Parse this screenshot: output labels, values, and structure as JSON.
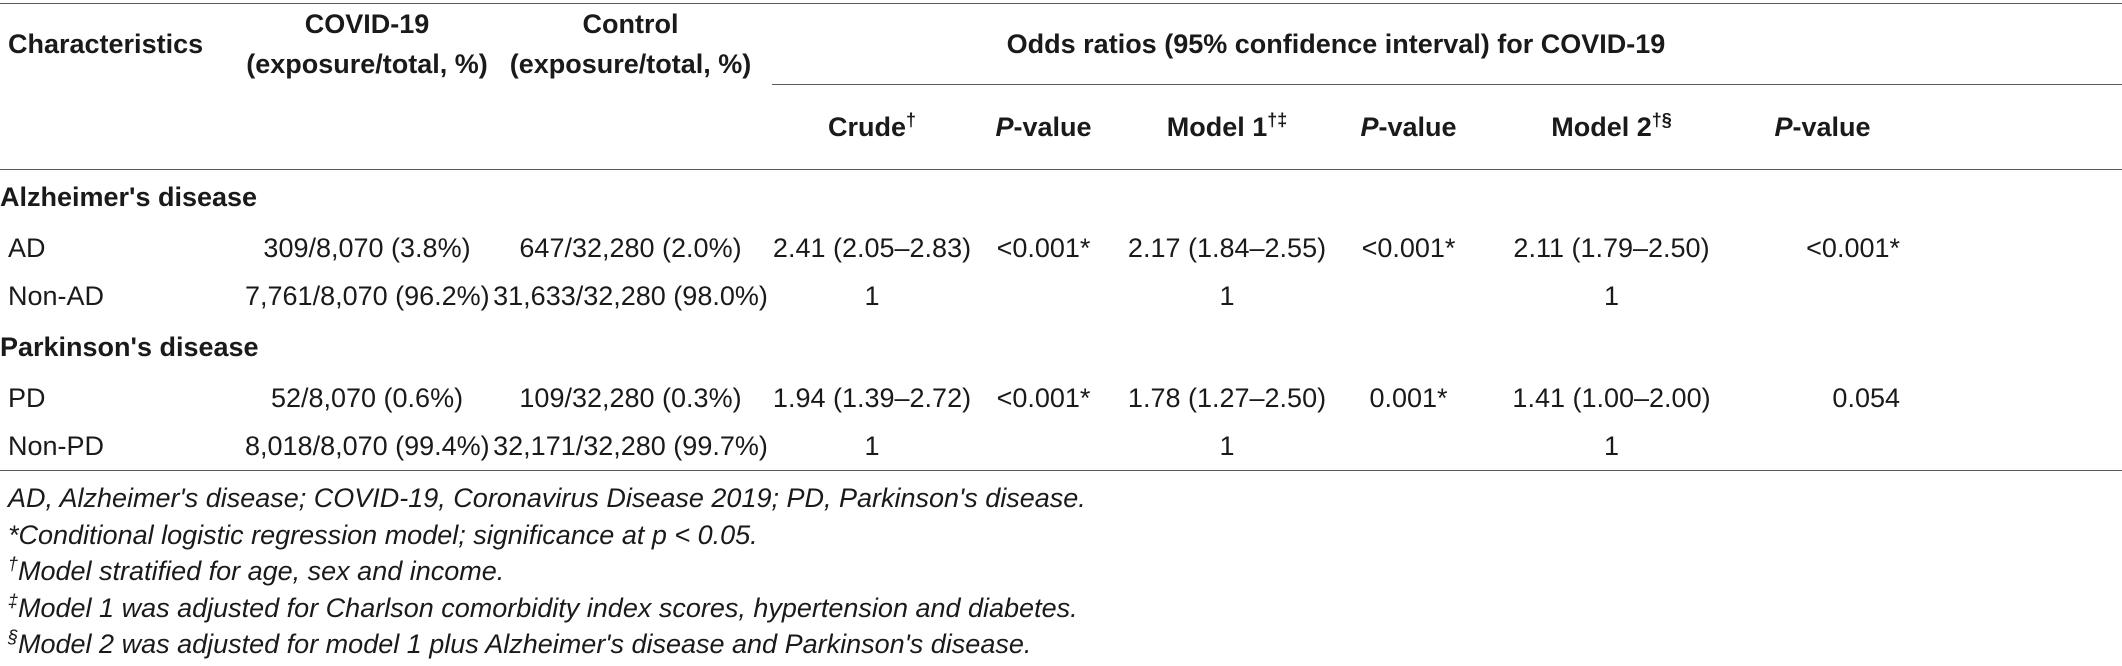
{
  "header": {
    "characteristics": "Characteristics",
    "covid_line1": "COVID-19",
    "covid_line2": "(exposure/total, %)",
    "control_line1": "Control",
    "control_line2": "(exposure/total, %)",
    "or_group": "Odds ratios (95% confidence interval) for COVID-19",
    "crude": "Crude",
    "crude_sup": "†",
    "p_italic": "P",
    "p_suffix": "-value",
    "model1": "Model 1",
    "model1_sup": "†‡",
    "model2": "Model 2",
    "model2_sup": "†§"
  },
  "sections": [
    {
      "title": "Alzheimer's disease",
      "rows": [
        {
          "label": "AD",
          "covid": "309/8,070 (3.8%)",
          "control": "647/32,280 (2.0%)",
          "crude": "2.41 (2.05–2.83)",
          "p1": "<0.001*",
          "model1": "2.17 (1.84–2.55)",
          "p2": "<0.001*",
          "model2": "2.11 (1.79–2.50)",
          "p3": "<0.001*"
        },
        {
          "label": "Non-AD",
          "covid": "7,761/8,070 (96.2%)",
          "control": "31,633/32,280 (98.0%)",
          "crude": "1",
          "p1": "",
          "model1": "1",
          "p2": "",
          "model2": "1",
          "p3": ""
        }
      ]
    },
    {
      "title": "Parkinson's disease",
      "rows": [
        {
          "label": "PD",
          "covid": "52/8,070 (0.6%)",
          "control": "109/32,280 (0.3%)",
          "crude": "1.94 (1.39–2.72)",
          "p1": "<0.001*",
          "model1": "1.78 (1.27–2.50)",
          "p2": "0.001*",
          "model2": "1.41 (1.00–2.00)",
          "p3": "0.054"
        },
        {
          "label": "Non-PD",
          "covid": "8,018/8,070 (99.4%)",
          "control": "32,171/32,280 (99.7%)",
          "crude": "1",
          "p1": "",
          "model1": "1",
          "p2": "",
          "model2": "1",
          "p3": ""
        }
      ]
    }
  ],
  "footnotes": {
    "abbrev": "AD, Alzheimer's disease; COVID-19, Coronavirus Disease 2019; PD, Parkinson's disease.",
    "star": "*Conditional logistic regression model; significance at p < 0.05.",
    "dagger_sym": "†",
    "dagger": "Model stratified for age, sex and income.",
    "ddagger_sym": "‡",
    "ddagger": "Model 1 was adjusted for Charlson comorbidity index scores, hypertension and diabetes.",
    "section_sym": "§",
    "section": "Model 2 was adjusted for model 1 plus Alzheimer's disease and Parkinson's disease."
  }
}
